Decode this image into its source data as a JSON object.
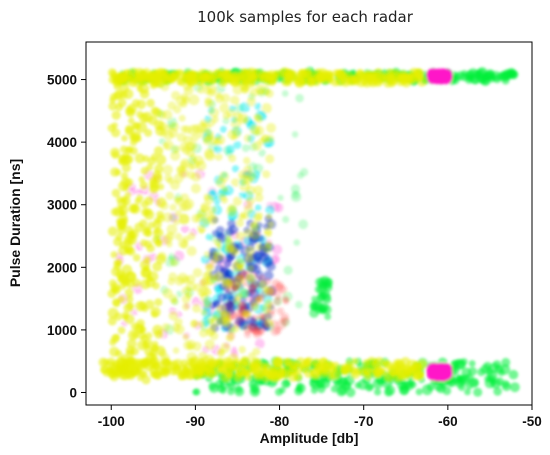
{
  "chart_data": {
    "type": "scatter",
    "title": "100k samples for each radar",
    "xlabel": "Amplitude [db]",
    "ylabel": "Pulse Duration [ns]",
    "xlim": [
      -103,
      -50
    ],
    "ylim": [
      -200,
      5600
    ],
    "xticks": [
      -100,
      -90,
      -80,
      -70,
      -60,
      -50
    ],
    "xtick_labels": [
      "-100",
      "-90",
      "-80",
      "-70",
      "-60",
      "-50"
    ],
    "yticks": [
      0,
      1000,
      2000,
      3000,
      4000,
      5000
    ],
    "ytick_labels": [
      "0",
      "1000",
      "2000",
      "3000",
      "4000",
      "5000"
    ],
    "grid": false,
    "legend": "none",
    "series_colors": {
      "green": "#00ee3a",
      "magenta": "#ff18c8",
      "cyan": "#00e8f0",
      "blue": "#1030c8",
      "red": "#ff2a2a",
      "yellow": "#e6ee00"
    },
    "regions": [
      {
        "color": "green",
        "amp_range": [
          -99,
          -52
        ],
        "duration_range": [
          4980,
          5120
        ],
        "density": "dense"
      },
      {
        "color": "green",
        "amp_range": [
          -90,
          -52
        ],
        "duration_range": [
          0,
          500
        ],
        "density": "dense"
      },
      {
        "color": "green",
        "amp_range": [
          -95,
          -77
        ],
        "duration_range": [
          1000,
          5000
        ],
        "density": "sparse"
      },
      {
        "color": "green",
        "amp_range": [
          -76,
          -74
        ],
        "duration_range": [
          1200,
          1800
        ],
        "density": "cluster"
      },
      {
        "color": "magenta",
        "amp_range": [
          -62,
          -60
        ],
        "duration_range": [
          5000,
          5100
        ],
        "density": "dense"
      },
      {
        "color": "magenta",
        "amp_range": [
          -62,
          -60
        ],
        "duration_range": [
          250,
          400
        ],
        "density": "dense"
      },
      {
        "color": "magenta",
        "amp_range": [
          -100,
          -80
        ],
        "duration_range": [
          600,
          3500
        ],
        "density": "sparse"
      },
      {
        "color": "cyan",
        "amp_range": [
          -89,
          -81
        ],
        "duration_range": [
          1000,
          4600
        ],
        "density": "clusters"
      },
      {
        "color": "blue",
        "amp_range": [
          -88,
          -81
        ],
        "duration_range": [
          1000,
          2800
        ],
        "density": "clusters"
      },
      {
        "color": "red",
        "amp_range": [
          -86,
          -79
        ],
        "duration_range": [
          900,
          1900
        ],
        "density": "sparse"
      },
      {
        "color": "yellow",
        "amp_range": [
          -100,
          -63
        ],
        "duration_range": [
          4950,
          5120
        ],
        "density": "dense"
      },
      {
        "color": "yellow",
        "amp_range": [
          -101,
          -63
        ],
        "duration_range": [
          250,
          500
        ],
        "density": "dense"
      },
      {
        "color": "yellow",
        "amp_range": [
          -100,
          -94
        ],
        "duration_range": [
          200,
          5100
        ],
        "density": "dense"
      },
      {
        "color": "yellow",
        "amp_range": [
          -94,
          -81
        ],
        "duration_range": [
          300,
          5100
        ],
        "density": "medium"
      }
    ]
  }
}
